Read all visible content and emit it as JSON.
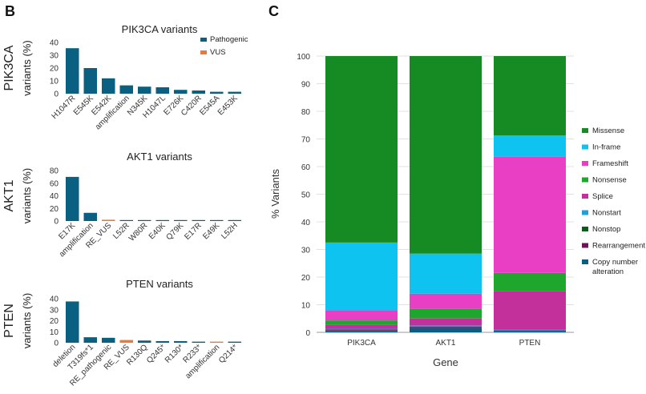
{
  "panel_b": {
    "letter": "B",
    "colors": {
      "Pathogenic": "#0a6080",
      "VUS": "#ea7a39"
    },
    "legend": [
      "Pathogenic",
      "VUS"
    ]
  },
  "panel_c": {
    "letter": "C"
  },
  "chart_data": [
    {
      "type": "bar",
      "title": "PIK3CA variants",
      "ylabel": "PIK3CA variants (%)",
      "ylim": [
        0,
        40
      ],
      "yticks": [
        0,
        10,
        20,
        30,
        40
      ],
      "categories": [
        "H1047R",
        "E545K",
        "E542K",
        "amplification",
        "N345K",
        "H1047L",
        "E726K",
        "C420R",
        "E545A",
        "E453K"
      ],
      "values": [
        35.5,
        20,
        12,
        6.5,
        5.5,
        5,
        3,
        2.5,
        1.5,
        1.5
      ],
      "series_type": [
        "Pathogenic",
        "Pathogenic",
        "Pathogenic",
        "Pathogenic",
        "Pathogenic",
        "Pathogenic",
        "Pathogenic",
        "Pathogenic",
        "Pathogenic",
        "Pathogenic"
      ],
      "legend": [
        "Pathogenic",
        "VUS"
      ]
    },
    {
      "type": "bar",
      "title": "AKT1 variants",
      "ylabel": "AKT1 variants (%)",
      "ylim": [
        0,
        80
      ],
      "yticks": [
        0,
        20,
        40,
        60,
        80
      ],
      "categories": [
        "E17K",
        "amplification",
        "RE_VUS",
        "L52R",
        "W80R",
        "E40K",
        "Q79K",
        "E17R",
        "E49K",
        "L52H"
      ],
      "values": [
        70,
        13,
        2,
        1,
        1,
        1,
        1,
        1,
        1,
        1
      ],
      "series_type": [
        "Pathogenic",
        "Pathogenic",
        "VUS",
        "Pathogenic",
        "Pathogenic",
        "Pathogenic",
        "Pathogenic",
        "Pathogenic",
        "Pathogenic",
        "Pathogenic"
      ]
    },
    {
      "type": "bar",
      "title": "PTEN variants",
      "ylabel": "PTEN variants (%)",
      "ylim": [
        0,
        40
      ],
      "yticks": [
        0,
        10,
        20,
        30,
        40
      ],
      "categories": [
        "deletion",
        "T319fs*1",
        "RE_pathogenic",
        "RE_VUS",
        "R130Q",
        "Q245*",
        "R130*",
        "R233*",
        "amplification",
        "Q214*"
      ],
      "values": [
        37.5,
        5,
        4.5,
        2.5,
        2,
        1.5,
        1.5,
        1,
        1,
        1
      ],
      "series_type": [
        "Pathogenic",
        "Pathogenic",
        "Pathogenic",
        "VUS",
        "Pathogenic",
        "Pathogenic",
        "Pathogenic",
        "Pathogenic",
        "VUS",
        "Pathogenic"
      ]
    },
    {
      "type": "bar",
      "stacked": true,
      "xlabel": "Gene",
      "ylabel": "% Variants",
      "ylim": [
        0,
        100
      ],
      "yticks": [
        0,
        10,
        20,
        30,
        40,
        50,
        60,
        70,
        80,
        90,
        100
      ],
      "grid": true,
      "legend_position": "right",
      "categories": [
        "PIK3CA",
        "AKT1",
        "PTEN"
      ],
      "series": [
        {
          "name": "Copy number alteration",
          "color": "#0b5e80",
          "values": [
            0.5,
            1.5,
            0.5
          ]
        },
        {
          "name": "Rearrangement",
          "color": "#6b1558",
          "values": [
            0.3,
            0.5,
            0.2
          ]
        },
        {
          "name": "Nonstop",
          "color": "#0a5c1c",
          "values": [
            0.2,
            0.0,
            0.0
          ]
        },
        {
          "name": "Nonstart",
          "color": "#1ea0d8",
          "values": [
            0.3,
            0.5,
            0.3
          ]
        },
        {
          "name": "Splice",
          "color": "#c3309c",
          "values": [
            1.5,
            2.5,
            14.0
          ]
        },
        {
          "name": "Nonsense",
          "color": "#1fa62d",
          "values": [
            1.5,
            3.5,
            6.5
          ]
        },
        {
          "name": "Frameshift",
          "color": "#e83fc4",
          "values": [
            3.7,
            5.5,
            42.0
          ]
        },
        {
          "name": "In-frame",
          "color": "#0ec3f0",
          "values": [
            24.5,
            14.5,
            7.8
          ]
        },
        {
          "name": "Missense",
          "color": "#168a23",
          "values": [
            67.5,
            71.5,
            28.7
          ]
        }
      ],
      "legend": [
        "Missense",
        "In-frame",
        "Frameshift",
        "Nonsense",
        "Splice",
        "Nonstart",
        "Nonstop",
        "Rearrangement",
        "Copy number alteration"
      ]
    }
  ]
}
